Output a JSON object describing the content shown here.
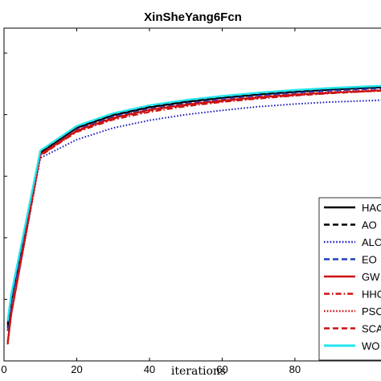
{
  "chart_data": {
    "type": "line",
    "title": "XinSheYang6Fcn",
    "xlabel": "iterations",
    "ylabel": "",
    "xlim": [
      0,
      105
    ],
    "xticks": [
      0,
      20,
      40,
      60,
      80
    ],
    "xtick_labels": [
      "0",
      "20",
      "40",
      "60",
      "80"
    ],
    "ylim": [
      0,
      1
    ],
    "grid": false,
    "legend_position": "lower-right",
    "legend_labels": [
      "HAC",
      "AO",
      "ALC",
      "EO",
      "GW",
      "HHC",
      "PSC",
      "SCA",
      "WO"
    ],
    "x": [
      1,
      2,
      10,
      20,
      30,
      40,
      50,
      60,
      70,
      80,
      90,
      100,
      105
    ],
    "series": [
      {
        "name": "HAC",
        "color": "#000000",
        "dash": "solid",
        "values": [
          0.1,
          0.18,
          0.625,
          0.7,
          0.738,
          0.762,
          0.778,
          0.79,
          0.8,
          0.808,
          0.815,
          0.82,
          0.822
        ]
      },
      {
        "name": "AO",
        "color": "#000000",
        "dash": "dashed",
        "values": [
          0.11,
          0.19,
          0.63,
          0.704,
          0.742,
          0.766,
          0.782,
          0.794,
          0.804,
          0.812,
          0.818,
          0.823,
          0.825
        ]
      },
      {
        "name": "ALC",
        "color": "#1f1fbf",
        "dash": "dotted",
        "values": [
          0.06,
          0.14,
          0.61,
          0.665,
          0.7,
          0.723,
          0.74,
          0.753,
          0.764,
          0.772,
          0.778,
          0.782,
          0.784
        ]
      },
      {
        "name": "EO",
        "color": "#1f3fbf",
        "dash": "dashed",
        "values": [
          0.09,
          0.17,
          0.62,
          0.696,
          0.734,
          0.758,
          0.774,
          0.787,
          0.797,
          0.805,
          0.812,
          0.817,
          0.819
        ]
      },
      {
        "name": "GW",
        "color": "#cc1111",
        "dash": "solid",
        "values": [
          0.05,
          0.14,
          0.62,
          0.692,
          0.73,
          0.754,
          0.77,
          0.782,
          0.792,
          0.8,
          0.806,
          0.811,
          0.813
        ]
      },
      {
        "name": "HHC",
        "color": "#cc1111",
        "dash": "dashdot",
        "values": [
          0.05,
          0.15,
          0.618,
          0.688,
          0.725,
          0.748,
          0.765,
          0.778,
          0.788,
          0.797,
          0.804,
          0.81,
          0.812
        ]
      },
      {
        "name": "PSC",
        "color": "#cc1111",
        "dash": "dotted",
        "values": [
          0.06,
          0.15,
          0.622,
          0.694,
          0.732,
          0.756,
          0.772,
          0.784,
          0.794,
          0.802,
          0.808,
          0.813,
          0.815
        ]
      },
      {
        "name": "SCA",
        "color": "#cc1111",
        "dash": "dashed",
        "values": [
          0.05,
          0.14,
          0.616,
          0.69,
          0.728,
          0.752,
          0.768,
          0.78,
          0.79,
          0.798,
          0.805,
          0.81,
          0.812
        ]
      },
      {
        "name": "WO",
        "color": "#22e5ee",
        "dash": "solid",
        "values": [
          0.12,
          0.2,
          0.632,
          0.706,
          0.744,
          0.768,
          0.784,
          0.796,
          0.806,
          0.814,
          0.82,
          0.825,
          0.827
        ]
      }
    ]
  }
}
